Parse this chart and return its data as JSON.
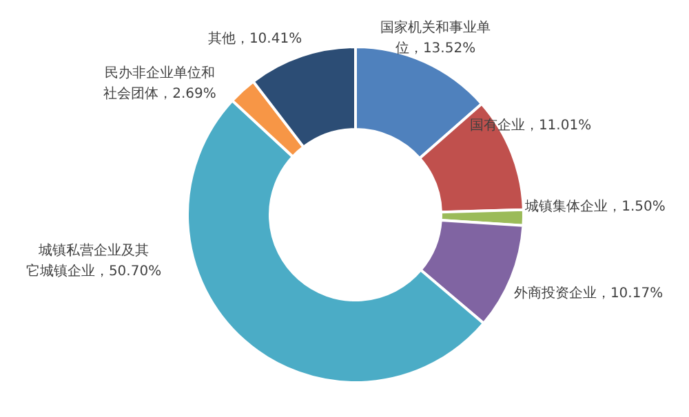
{
  "chart_data": {
    "type": "donut",
    "categories": [
      "国家机关和事业单位",
      "国有企业",
      "城镇集体企业",
      "外商投资企业",
      "城镇私营企业及其它城镇企业",
      "民办非企业单位和社会团体",
      "其他"
    ],
    "values": [
      13.52,
      11.01,
      1.5,
      10.17,
      50.7,
      2.69,
      10.41
    ],
    "colors": [
      "#4f81bd",
      "#c0504d",
      "#9bbb59",
      "#8064a2",
      "#4bacc6",
      "#f79646",
      "#2c4d75"
    ],
    "value_labels": [
      "13.52%",
      "11.01%",
      "1.50%",
      "10.17%",
      "50.70%",
      "2.69%",
      "10.41%"
    ]
  }
}
